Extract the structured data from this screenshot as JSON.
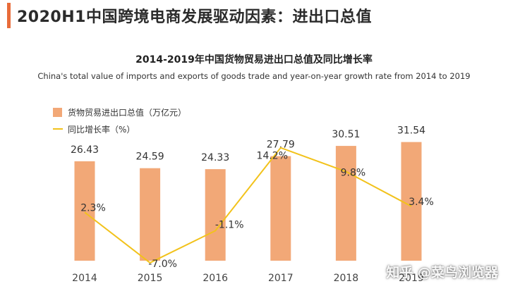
{
  "header": {
    "title": "2020H1中国跨境电商发展驱动因素：进出口总值"
  },
  "chart_data": {
    "type": "bar",
    "title": "2014-2019年中国货物贸易进出口总值及同比增长率",
    "subtitle": "China's total value of imports and exports of goods trade and year-on-year growth rate from 2014 to 2019",
    "categories": [
      "2014",
      "2015",
      "2016",
      "2017",
      "2018",
      "2019"
    ],
    "series": [
      {
        "name": "货物贸易进出口总值（万亿元）",
        "type": "bar",
        "values": [
          26.43,
          24.59,
          24.33,
          27.79,
          30.51,
          31.54
        ],
        "labels": [
          "26.43",
          "24.59",
          "24.33",
          "27.79",
          "30.51",
          "31.54"
        ],
        "color": "#f2a877"
      },
      {
        "name": "同比增长率（%）",
        "type": "line",
        "values": [
          2.3,
          -7.0,
          -1.1,
          14.2,
          9.8,
          3.4
        ],
        "labels": [
          "2.3%",
          "-7.0%",
          "-1.1%",
          "14.2%",
          "9.8%",
          "3.4%"
        ],
        "color": "#f2c21b"
      }
    ],
    "legend_position": "top-left"
  },
  "watermark": "知乎 @菜鸟浏览器"
}
